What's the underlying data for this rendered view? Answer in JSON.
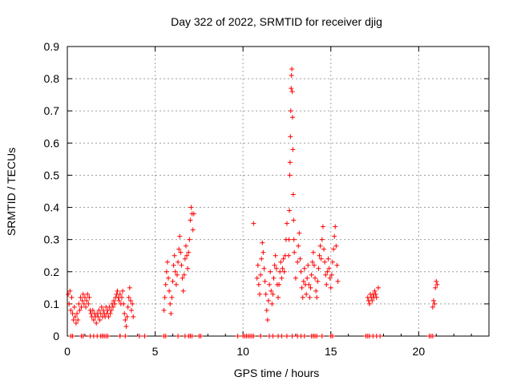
{
  "chart_data": {
    "type": "scatter",
    "title": "Day 322 of 2022, SRMTID for receiver djig",
    "xlabel": "GPS time / hours",
    "ylabel": "SRMTID / TECUs",
    "xlim": [
      0,
      24
    ],
    "ylim": [
      0,
      0.9
    ],
    "x_ticks": [
      0,
      5,
      10,
      15,
      20
    ],
    "y_ticks": [
      0,
      0.1,
      0.2,
      0.3,
      0.4,
      0.5,
      0.6,
      0.7,
      0.8,
      0.9
    ],
    "grid": true,
    "marker": "+",
    "color": "#ff0000",
    "series": [
      {
        "name": "SRMTID",
        "points": [
          [
            0.05,
            0.13
          ],
          [
            0.1,
            0.1
          ],
          [
            0.15,
            0.14
          ],
          [
            0.2,
            0.08
          ],
          [
            0.25,
            0.12
          ],
          [
            0.3,
            0.07
          ],
          [
            0.35,
            0.05
          ],
          [
            0.4,
            0.09
          ],
          [
            0.45,
            0.06
          ],
          [
            0.5,
            0.04
          ],
          [
            0.55,
            0.07
          ],
          [
            0.6,
            0.05
          ],
          [
            0.65,
            0.1
          ],
          [
            0.7,
            0.08
          ],
          [
            0.75,
            0.12
          ],
          [
            0.8,
            0.09
          ],
          [
            0.85,
            0.11
          ],
          [
            0.9,
            0.13
          ],
          [
            0.95,
            0.1
          ],
          [
            1.0,
            0.12
          ],
          [
            1.05,
            0.09
          ],
          [
            1.1,
            0.11
          ],
          [
            1.15,
            0.13
          ],
          [
            1.2,
            0.1
          ],
          [
            1.25,
            0.12
          ],
          [
            1.3,
            0.08
          ],
          [
            1.35,
            0.07
          ],
          [
            1.4,
            0.06
          ],
          [
            1.45,
            0.08
          ],
          [
            1.5,
            0.05
          ],
          [
            1.55,
            0.07
          ],
          [
            1.6,
            0.06
          ],
          [
            1.65,
            0.04
          ],
          [
            1.7,
            0.07
          ],
          [
            1.75,
            0.06
          ],
          [
            1.8,
            0.08
          ],
          [
            1.85,
            0.05
          ],
          [
            1.9,
            0.07
          ],
          [
            1.95,
            0.09
          ],
          [
            2.0,
            0.06
          ],
          [
            2.05,
            0.08
          ],
          [
            2.1,
            0.07
          ],
          [
            2.15,
            0.06
          ],
          [
            2.2,
            0.09
          ],
          [
            2.25,
            0.07
          ],
          [
            2.3,
            0.08
          ],
          [
            2.35,
            0.06
          ],
          [
            2.4,
            0.09
          ],
          [
            2.45,
            0.07
          ],
          [
            2.5,
            0.08
          ],
          [
            2.55,
            0.1
          ],
          [
            2.6,
            0.09
          ],
          [
            2.65,
            0.11
          ],
          [
            2.7,
            0.1
          ],
          [
            2.75,
            0.12
          ],
          [
            2.8,
            0.13
          ],
          [
            2.85,
            0.14
          ],
          [
            2.9,
            0.12
          ],
          [
            2.95,
            0.11
          ],
          [
            3.0,
            0.13
          ],
          [
            3.05,
            0.1
          ],
          [
            3.1,
            0.12
          ],
          [
            3.15,
            0.14
          ],
          [
            3.2,
            0.1
          ],
          [
            3.25,
            0.07
          ],
          [
            3.3,
            0.05
          ],
          [
            3.35,
            0.03
          ],
          [
            3.4,
            0.06
          ],
          [
            3.45,
            0.09
          ],
          [
            3.5,
            0.12
          ],
          [
            3.55,
            0.15
          ],
          [
            3.6,
            0.11
          ],
          [
            3.65,
            0.08
          ],
          [
            3.7,
            0.1
          ],
          [
            3.75,
            0.06
          ],
          [
            5.5,
            0.08
          ],
          [
            5.55,
            0.12
          ],
          [
            5.6,
            0.16
          ],
          [
            5.65,
            0.2
          ],
          [
            5.7,
            0.23
          ],
          [
            5.75,
            0.18
          ],
          [
            5.8,
            0.14
          ],
          [
            5.85,
            0.1
          ],
          [
            5.9,
            0.07
          ],
          [
            5.95,
            0.12
          ],
          [
            6.0,
            0.17
          ],
          [
            6.05,
            0.22
          ],
          [
            6.1,
            0.25
          ],
          [
            6.15,
            0.2
          ],
          [
            6.2,
            0.16
          ],
          [
            6.25,
            0.19
          ],
          [
            6.3,
            0.23
          ],
          [
            6.35,
            0.27
          ],
          [
            6.4,
            0.31
          ],
          [
            6.45,
            0.26
          ],
          [
            6.5,
            0.22
          ],
          [
            6.55,
            0.18
          ],
          [
            6.6,
            0.14
          ],
          [
            6.65,
            0.19
          ],
          [
            6.7,
            0.24
          ],
          [
            6.75,
            0.28
          ],
          [
            6.8,
            0.25
          ],
          [
            6.85,
            0.21
          ],
          [
            6.9,
            0.26
          ],
          [
            6.95,
            0.3
          ],
          [
            7.0,
            0.36
          ],
          [
            7.05,
            0.4
          ],
          [
            7.1,
            0.38
          ],
          [
            7.15,
            0.33
          ],
          [
            7.2,
            0.38
          ],
          [
            10.6,
            0.35
          ],
          [
            10.8,
            0.18
          ],
          [
            10.85,
            0.22
          ],
          [
            10.9,
            0.16
          ],
          [
            10.95,
            0.13
          ],
          [
            11.0,
            0.19
          ],
          [
            11.05,
            0.24
          ],
          [
            11.1,
            0.29
          ],
          [
            11.15,
            0.26
          ],
          [
            11.2,
            0.21
          ],
          [
            11.25,
            0.17
          ],
          [
            11.3,
            0.13
          ],
          [
            11.35,
            0.08
          ],
          [
            11.4,
            0.05
          ],
          [
            11.45,
            0.11
          ],
          [
            11.5,
            0.16
          ],
          [
            11.55,
            0.2
          ],
          [
            11.6,
            0.14
          ],
          [
            11.65,
            0.1
          ],
          [
            11.7,
            0.13
          ],
          [
            11.75,
            0.18
          ],
          [
            11.8,
            0.22
          ],
          [
            11.85,
            0.25
          ],
          [
            11.9,
            0.21
          ],
          [
            11.95,
            0.16
          ],
          [
            12.0,
            0.12
          ],
          [
            12.05,
            0.16
          ],
          [
            12.1,
            0.2
          ],
          [
            12.15,
            0.23
          ],
          [
            12.2,
            0.18
          ],
          [
            12.25,
            0.21
          ],
          [
            12.3,
            0.24
          ],
          [
            12.35,
            0.2
          ],
          [
            12.4,
            0.25
          ],
          [
            12.45,
            0.3
          ],
          [
            12.5,
            0.35
          ],
          [
            12.6,
            0.25
          ],
          [
            12.62,
            0.3
          ],
          [
            12.64,
            0.39
          ],
          [
            12.66,
            0.5
          ],
          [
            12.68,
            0.54
          ],
          [
            12.7,
            0.62
          ],
          [
            12.72,
            0.7
          ],
          [
            12.74,
            0.77
          ],
          [
            12.76,
            0.81
          ],
          [
            12.78,
            0.83
          ],
          [
            12.8,
            0.76
          ],
          [
            12.82,
            0.68
          ],
          [
            12.84,
            0.58
          ],
          [
            12.86,
            0.44
          ],
          [
            12.88,
            0.36
          ],
          [
            12.9,
            0.3
          ],
          [
            12.92,
            0.26
          ],
          [
            13.0,
            0.18
          ],
          [
            13.1,
            0.23
          ],
          [
            13.15,
            0.28
          ],
          [
            13.2,
            0.32
          ],
          [
            13.25,
            0.24
          ],
          [
            13.3,
            0.2
          ],
          [
            13.35,
            0.15
          ],
          [
            13.4,
            0.12
          ],
          [
            13.45,
            0.17
          ],
          [
            13.5,
            0.21
          ],
          [
            13.55,
            0.16
          ],
          [
            13.6,
            0.13
          ],
          [
            13.65,
            0.18
          ],
          [
            13.7,
            0.22
          ],
          [
            13.75,
            0.16
          ],
          [
            13.8,
            0.12
          ],
          [
            13.85,
            0.15
          ],
          [
            13.9,
            0.19
          ],
          [
            13.95,
            0.23
          ],
          [
            14.0,
            0.26
          ],
          [
            14.05,
            0.22
          ],
          [
            14.1,
            0.18
          ],
          [
            14.15,
            0.14
          ],
          [
            14.2,
            0.12
          ],
          [
            14.25,
            0.17
          ],
          [
            14.3,
            0.21
          ],
          [
            14.35,
            0.25
          ],
          [
            14.4,
            0.28
          ],
          [
            14.45,
            0.24
          ],
          [
            14.5,
            0.3
          ],
          [
            14.55,
            0.34
          ],
          [
            14.6,
            0.27
          ],
          [
            14.65,
            0.23
          ],
          [
            14.7,
            0.19
          ],
          [
            14.75,
            0.16
          ],
          [
            14.8,
            0.2
          ],
          [
            14.85,
            0.24
          ],
          [
            14.9,
            0.21
          ],
          [
            14.95,
            0.18
          ],
          [
            15.0,
            0.15
          ],
          [
            15.05,
            0.19
          ],
          [
            15.1,
            0.23
          ],
          [
            15.15,
            0.27
          ],
          [
            15.2,
            0.31
          ],
          [
            15.25,
            0.34
          ],
          [
            15.3,
            0.28
          ],
          [
            15.35,
            0.22
          ],
          [
            15.4,
            0.17
          ],
          [
            17.1,
            0.12
          ],
          [
            17.15,
            0.11
          ],
          [
            17.2,
            0.1
          ],
          [
            17.25,
            0.13
          ],
          [
            17.3,
            0.12
          ],
          [
            17.35,
            0.11
          ],
          [
            17.4,
            0.13
          ],
          [
            17.45,
            0.12
          ],
          [
            17.5,
            0.14
          ],
          [
            17.55,
            0.13
          ],
          [
            17.6,
            0.12
          ],
          [
            17.7,
            0.15
          ],
          [
            20.8,
            0.09
          ],
          [
            20.85,
            0.11
          ],
          [
            20.9,
            0.1
          ],
          [
            20.95,
            0.15
          ],
          [
            21.0,
            0.17
          ],
          [
            21.05,
            0.16
          ]
        ],
        "zero_points": [
          0.2,
          0.3,
          0.8,
          0.9,
          1.3,
          1.5,
          1.7,
          1.9,
          2.0,
          2.1,
          2.2,
          2.3,
          3.0,
          3.3,
          4.1,
          4.4,
          5.5,
          5.6,
          6.3,
          6.7,
          6.9,
          7.0,
          7.1,
          7.5,
          7.6,
          9.7,
          10.0,
          10.1,
          10.2,
          10.3,
          10.4,
          10.5,
          10.6,
          11.0,
          11.5,
          11.7,
          12.0,
          12.2,
          12.5,
          12.8,
          13.1,
          13.3,
          13.5,
          13.9,
          14.0,
          14.1,
          14.2,
          14.5,
          15.0,
          15.1,
          17.0,
          17.1,
          17.2,
          17.4,
          17.6,
          17.8,
          20.6,
          20.7,
          20.8
        ]
      }
    ]
  }
}
